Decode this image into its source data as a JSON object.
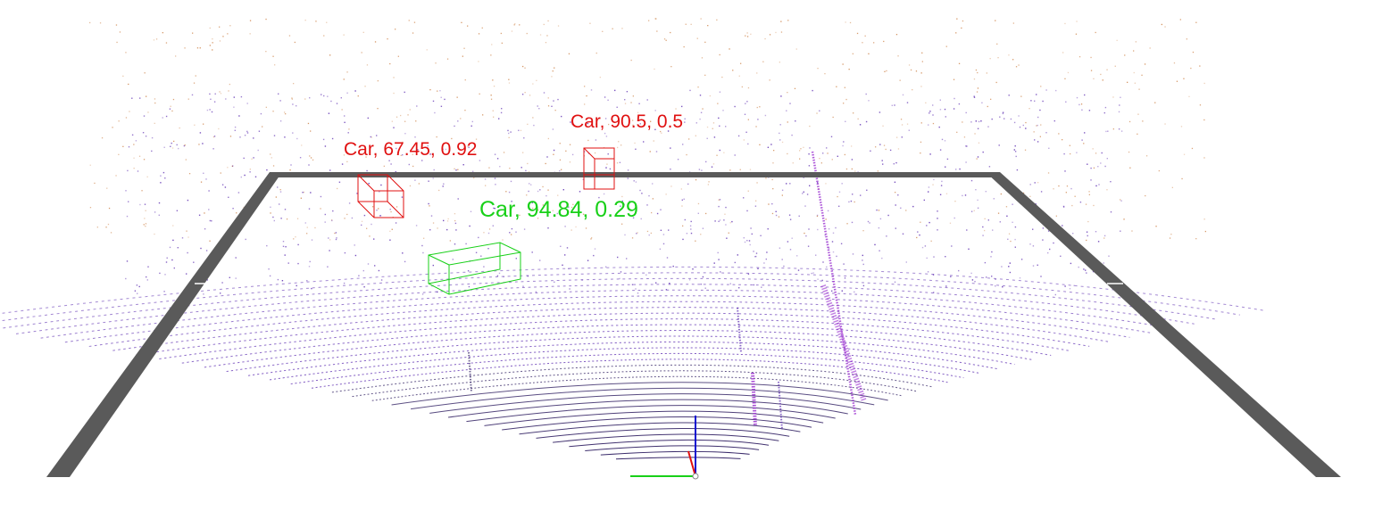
{
  "colors": {
    "background": "#ffffff",
    "grid_frame": "#5a5a5a",
    "ground_points": "#3a2a6a",
    "near_points": "#5b2bb0",
    "far_points": "#c9793a",
    "pole_points": "#9b30d0",
    "pred_box": "#e01010",
    "gt_box": "#18d018",
    "axis_x": "#18d018",
    "axis_y": "#e01010",
    "axis_z": "#1010d0"
  },
  "detections": [
    {
      "text": "Car, 67.45, 0.92",
      "color": "#e01010"
    },
    {
      "text": "Car, 90.5, 0.5",
      "color": "#e01010"
    },
    {
      "text": "Car, 94.84, 0.29",
      "color": "#18d018"
    }
  ],
  "icons": {
    "origin_axes": "xyz-axes-icon"
  }
}
